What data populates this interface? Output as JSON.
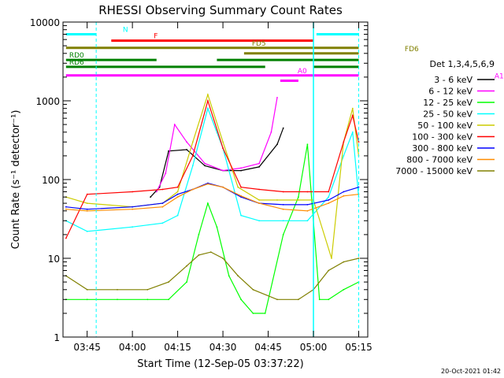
{
  "chart_data": {
    "type": "line",
    "title": "RHESSI Observing Summary Count Rates",
    "xlabel": "Start Time (12-Sep-05 03:37:22)",
    "ylabel": "Count Rate (s⁻¹ detector⁻¹)",
    "y_scale": "log",
    "ylim": [
      1,
      10000
    ],
    "xlim_minutes": [
      "03:37",
      "05:18"
    ],
    "x_ticks": [
      "03:45",
      "04:00",
      "04:15",
      "04:30",
      "04:45",
      "05:00",
      "05:15"
    ],
    "y_ticks": [
      "1",
      "10",
      "100",
      "1000",
      "10000"
    ],
    "legend_title": "Det 1,3,4,5,6,9",
    "legend_position": "right",
    "footer": "20-Oct-2021 01:42",
    "series": [
      {
        "name": "3 - 6 keV",
        "color": "#000000",
        "x": [
          "04:06",
          "04:09",
          "04:12",
          "04:18",
          "04:24",
          "04:30",
          "04:36",
          "04:42",
          "04:48",
          "04:50"
        ],
        "values": [
          60,
          80,
          230,
          240,
          150,
          130,
          130,
          145,
          280,
          450
        ]
      },
      {
        "name": "6 - 12 keV",
        "color": "#ff00ff",
        "x": [
          "04:08",
          "04:11",
          "04:14",
          "04:18",
          "04:24",
          "04:30",
          "04:36",
          "04:42",
          "04:46",
          "04:48"
        ],
        "values": [
          70,
          120,
          500,
          300,
          160,
          130,
          140,
          160,
          400,
          1100
        ]
      },
      {
        "name": "12 - 25 keV",
        "color": "#00ff00",
        "x": [
          "03:38",
          "03:45",
          "03:55",
          "04:05",
          "04:12",
          "04:18",
          "04:22",
          "04:25",
          "04:28",
          "04:32",
          "04:36",
          "04:40",
          "04:44",
          "04:50",
          "04:55",
          "04:58",
          "05:02",
          "05:05",
          "05:10",
          "05:15"
        ],
        "values": [
          3,
          3,
          3,
          3,
          3,
          5,
          20,
          50,
          25,
          6,
          3,
          2,
          2,
          20,
          60,
          280,
          3,
          3,
          4,
          5
        ]
      },
      {
        "name": "25 - 50 keV",
        "color": "#00ffff",
        "x": [
          "03:38",
          "03:45",
          "04:00",
          "04:10",
          "04:15",
          "04:20",
          "04:25",
          "04:30",
          "04:36",
          "04:42",
          "04:50",
          "04:58",
          "05:05",
          "05:10",
          "05:13",
          "05:15"
        ],
        "values": [
          30,
          22,
          25,
          28,
          35,
          150,
          800,
          250,
          35,
          30,
          30,
          30,
          60,
          200,
          400,
          60
        ]
      },
      {
        "name": "50 - 100 keV",
        "color": "#cccc00",
        "x": [
          "03:38",
          "03:45",
          "04:00",
          "04:10",
          "04:15",
          "04:20",
          "04:25",
          "04:30",
          "04:35",
          "04:42",
          "04:48",
          "04:55",
          "05:00",
          "05:06",
          "05:10",
          "05:13",
          "05:15"
        ],
        "values": [
          60,
          50,
          45,
          50,
          70,
          300,
          1200,
          300,
          80,
          55,
          55,
          55,
          55,
          10,
          300,
          800,
          200
        ]
      },
      {
        "name": "100 - 300 keV",
        "color": "#ff0000",
        "x": [
          "03:38",
          "03:45",
          "04:00",
          "04:10",
          "04:15",
          "04:20",
          "04:25",
          "04:30",
          "04:36",
          "04:42",
          "04:50",
          "04:58",
          "05:05",
          "05:10",
          "05:13",
          "05:15"
        ],
        "values": [
          18,
          65,
          70,
          75,
          80,
          200,
          1000,
          250,
          80,
          75,
          70,
          70,
          70,
          300,
          650,
          300
        ]
      },
      {
        "name": "300 - 800 keV",
        "color": "#0000ff",
        "x": [
          "03:38",
          "03:45",
          "04:00",
          "04:10",
          "04:15",
          "04:20",
          "04:25",
          "04:30",
          "04:36",
          "04:42",
          "04:50",
          "04:58",
          "05:05",
          "05:10",
          "05:15"
        ],
        "values": [
          45,
          42,
          45,
          50,
          65,
          75,
          90,
          80,
          60,
          50,
          48,
          48,
          55,
          70,
          80
        ]
      },
      {
        "name": "800 - 7000 keV",
        "color": "#ff8c00",
        "x": [
          "03:38",
          "03:45",
          "04:00",
          "04:10",
          "04:15",
          "04:20",
          "04:25",
          "04:30",
          "04:36",
          "04:42",
          "04:50",
          "04:58",
          "05:05",
          "05:10",
          "05:15"
        ],
        "values": [
          42,
          40,
          42,
          45,
          60,
          75,
          88,
          80,
          62,
          50,
          42,
          40,
          50,
          62,
          65
        ]
      },
      {
        "name": "7000 - 15000 keV",
        "color": "#808000",
        "x": [
          "03:38",
          "03:45",
          "03:55",
          "04:05",
          "04:12",
          "04:18",
          "04:22",
          "04:26",
          "04:30",
          "04:35",
          "04:40",
          "04:48",
          "04:55",
          "05:00",
          "05:05",
          "05:10",
          "05:15"
        ],
        "values": [
          6,
          4,
          4,
          4,
          5,
          8,
          11,
          12,
          10,
          6,
          4,
          3,
          3,
          4,
          7,
          9,
          10
        ]
      }
    ],
    "attenuator_bars": [
      {
        "label": "N",
        "color": "#00ffff",
        "y_level": 7000,
        "segments": [
          [
            "03:38",
            "03:48"
          ],
          [
            "05:01",
            "05:15"
          ]
        ]
      },
      {
        "label": "F",
        "color": "#ff0000",
        "y_level": 5800,
        "segments": [
          [
            "03:53",
            "05:00"
          ]
        ]
      },
      {
        "label": "FD5",
        "color": "#808000",
        "y_level": 4700,
        "segments": [
          [
            "03:38",
            "05:15"
          ]
        ]
      },
      {
        "label": "FD6",
        "color": "#808000",
        "y_level": 4000,
        "segments": [
          [
            "04:37",
            "05:15"
          ]
        ]
      },
      {
        "label": "RD0",
        "color": "#008000",
        "y_level": 3300,
        "segments": [
          [
            "03:38",
            "04:08"
          ],
          [
            "04:28",
            "05:15"
          ]
        ]
      },
      {
        "label": "RD6",
        "color": "#008000",
        "y_level": 2700,
        "segments": [
          [
            "03:38",
            "04:44"
          ],
          [
            "05:00",
            "05:15"
          ]
        ]
      },
      {
        "label": "A0",
        "color": "#ff00ff",
        "y_level": 2100,
        "segments": [
          [
            "03:38",
            "05:15"
          ]
        ]
      },
      {
        "label": "A1",
        "color": "#ff00ff",
        "y_level": 1800,
        "segments": [
          [
            "04:49",
            "04:55"
          ]
        ]
      }
    ]
  }
}
